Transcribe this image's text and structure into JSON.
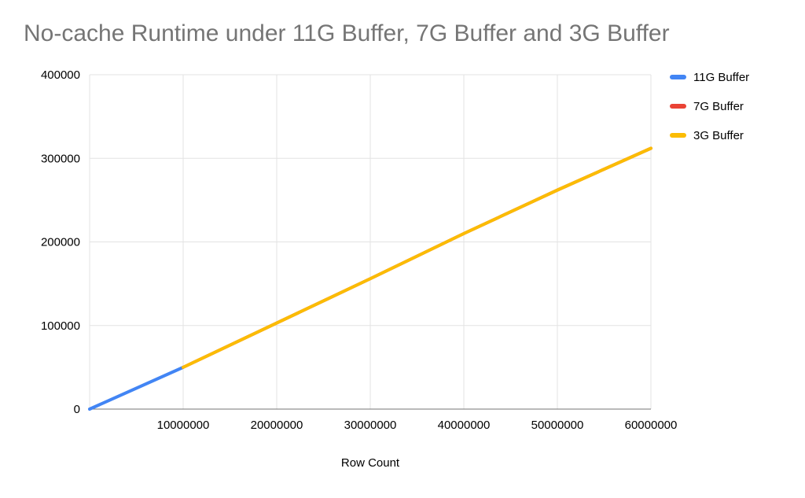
{
  "chart_data": {
    "type": "line",
    "title": "No-cache Runtime under 11G Buffer, 7G Buffer and 3G Buffer",
    "xlabel": "Row Count",
    "ylabel": "",
    "xlim": [
      0,
      60000000
    ],
    "ylim": [
      0,
      400000
    ],
    "x_ticks": [
      10000000,
      20000000,
      30000000,
      40000000,
      50000000,
      60000000
    ],
    "x_tick_labels": [
      "10000000",
      "20000000",
      "30000000",
      "40000000",
      "50000000",
      "60000000"
    ],
    "y_ticks": [
      0,
      100000,
      200000,
      300000,
      400000
    ],
    "y_tick_labels": [
      "0",
      "100000",
      "200000",
      "300000",
      "400000"
    ],
    "grid": true,
    "legend_position": "top-right",
    "series": [
      {
        "name": "11G Buffer",
        "color": "#4285F4",
        "x": [
          0,
          10000000
        ],
        "y": [
          0,
          50000
        ]
      },
      {
        "name": "7G Buffer",
        "color": "#EA4335",
        "x": [
          10000000,
          20000000,
          30000000,
          40000000,
          50000000,
          60000000
        ],
        "y": [
          50000,
          103000,
          156000,
          210000,
          262000,
          312000
        ]
      },
      {
        "name": "3G Buffer",
        "color": "#FBBC04",
        "x": [
          10000000,
          20000000,
          30000000,
          40000000,
          50000000,
          60000000
        ],
        "y": [
          50000,
          103000,
          156000,
          210000,
          262000,
          312000
        ]
      }
    ],
    "styles": {
      "background": "#ffffff",
      "grid_color": "#e3e3e3",
      "axis_color": "#757575",
      "title_color": "#757575",
      "tick_color": "#000000"
    }
  }
}
